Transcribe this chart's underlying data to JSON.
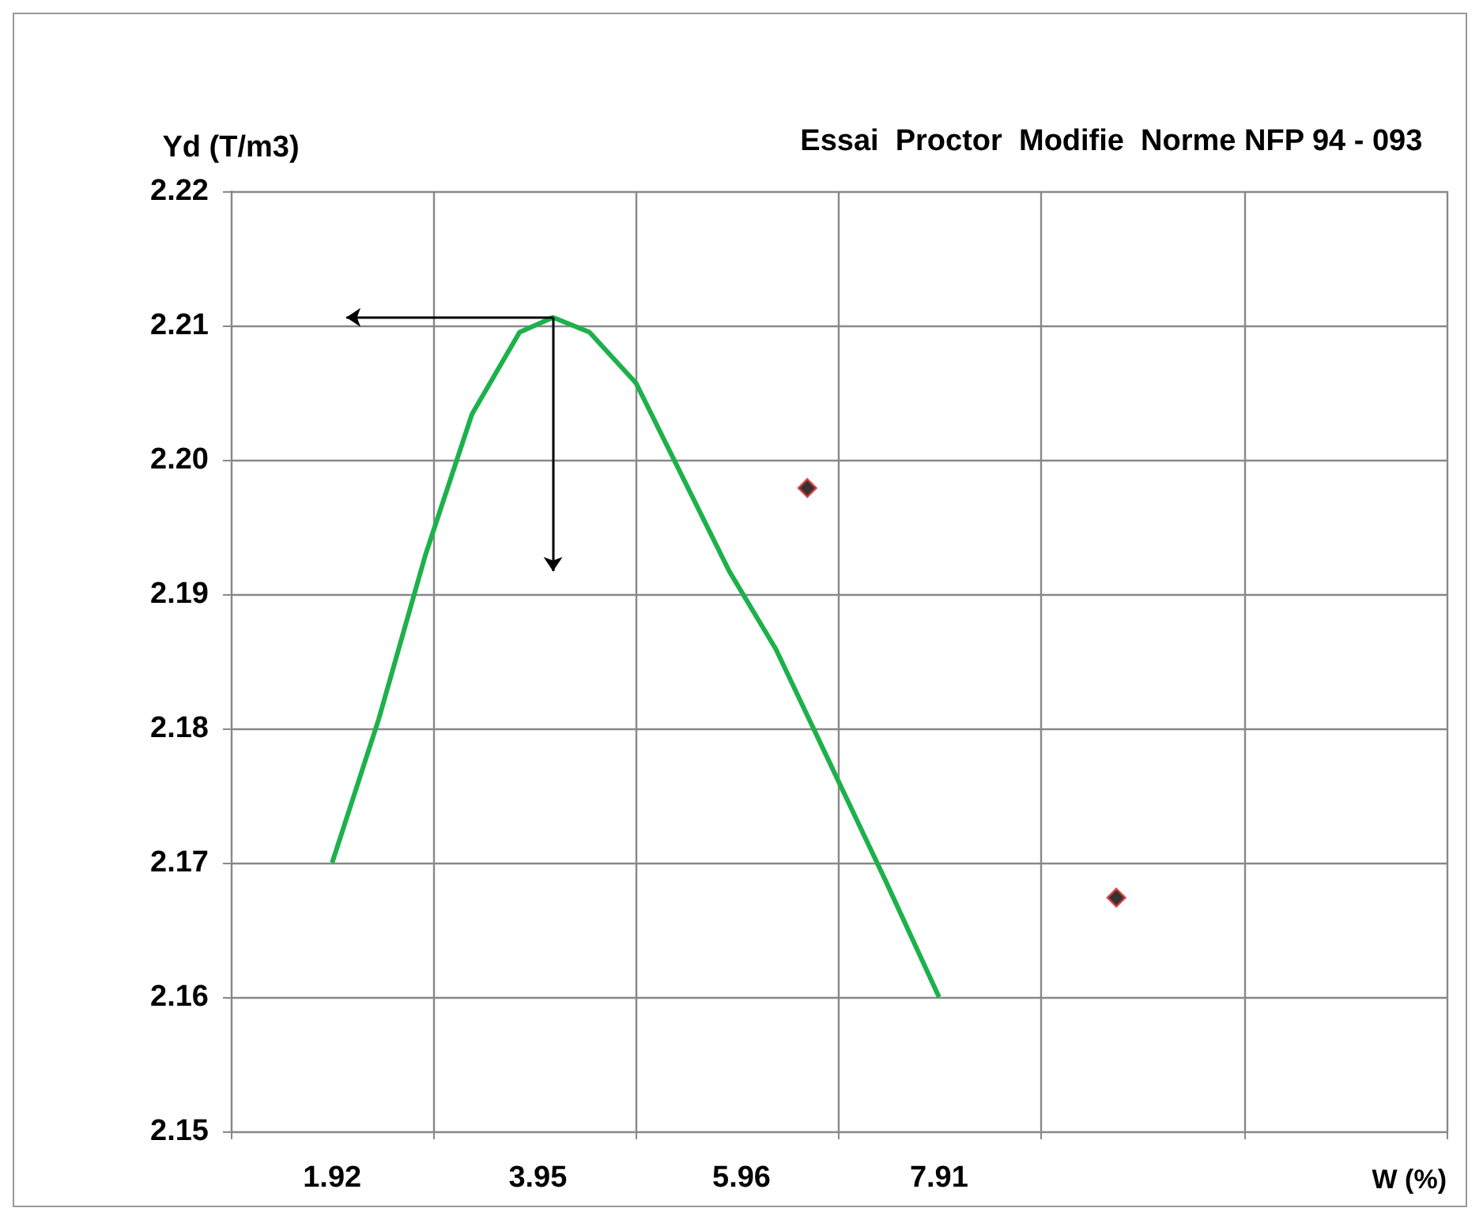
{
  "chart_data": {
    "type": "line",
    "title": "Essai  Proctor  Modifie  Norme NFP 94 - 093",
    "xlabel": "W (%)",
    "ylabel": "Yd (T/m3)",
    "xlim": [
      0.92,
      12.92
    ],
    "xticks": [
      {
        "value": 0.92,
        "label": null
      },
      {
        "value": 1.92,
        "label": "1.92"
      },
      {
        "value": 2.92,
        "label": null
      },
      {
        "value": 3.95,
        "label": "3.95"
      },
      {
        "value": 4.92,
        "label": null
      },
      {
        "value": 5.96,
        "label": "5.96"
      },
      {
        "value": 6.92,
        "label": null
      },
      {
        "value": 7.91,
        "label": "7.91"
      },
      {
        "value": 8.92,
        "label": null
      },
      {
        "value": 10.92,
        "label": null
      },
      {
        "value": 12.92,
        "label": null
      }
    ],
    "ylim": [
      2.15,
      2.22
    ],
    "yticks": [
      2.15,
      2.16,
      2.17,
      2.18,
      2.19,
      {
        "value": 2.2,
        "label": "2.20"
      },
      2.21,
      2.22
    ],
    "grid": true,
    "series": [
      {
        "type": "line",
        "color": "#1db14b",
        "marker": "none",
        "line_style": "solid",
        "x": [
          1.92,
          2.38,
          2.84,
          3.3,
          3.77,
          4.1,
          4.46,
          4.92,
          5.38,
          5.84,
          6.3,
          6.84,
          7.38,
          7.91
        ],
        "values": [
          2.17,
          2.1807,
          2.1929,
          2.2034,
          2.2095,
          2.2106,
          2.2095,
          2.2057,
          2.1987,
          2.1917,
          2.1859,
          2.1773,
          2.1687,
          2.16
        ]
      },
      {
        "type": "scatter",
        "color": "#000000",
        "marker": "diamond",
        "x": [
          6.61,
          9.66
        ],
        "values": [
          2.1979,
          2.1674
        ]
      }
    ]
  }
}
